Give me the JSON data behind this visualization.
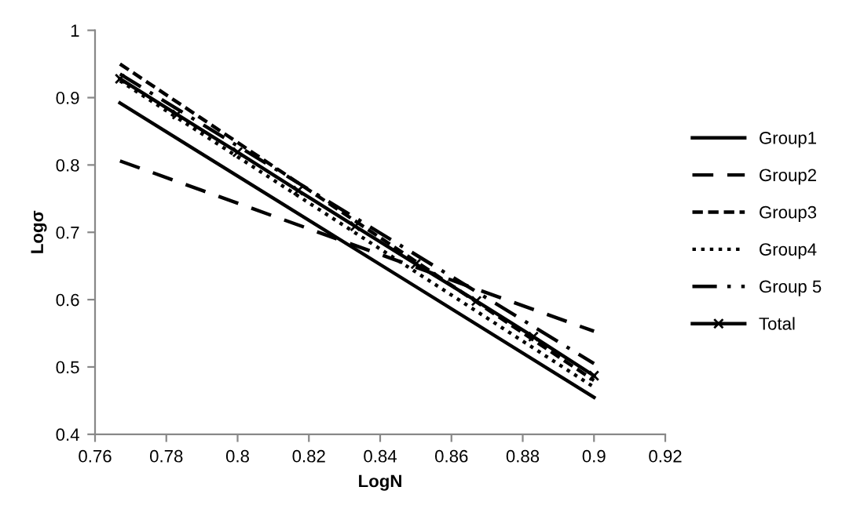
{
  "chart_data": {
    "type": "line",
    "xlabel": "LogN",
    "ylabel": "Logσ",
    "xlim": [
      0.76,
      0.92
    ],
    "xticks": [
      0.76,
      0.78,
      0.8,
      0.82,
      0.84,
      0.86,
      0.88,
      0.9,
      0.92
    ],
    "ylim": [
      0.4,
      1
    ],
    "yticks": [
      0.4,
      0.5,
      0.6,
      0.7,
      0.8,
      0.9,
      1
    ],
    "grid": false,
    "legend": "right",
    "marker": "none",
    "series": [
      {
        "name": "Group1",
        "color": "#000000",
        "line_style": "solid",
        "x": [
          0.767,
          0.9
        ],
        "values": [
          0.892,
          0.455
        ]
      },
      {
        "name": "Group2",
        "color": "#000000",
        "line_style": "longdash",
        "x": [
          0.767,
          0.9
        ],
        "values": [
          0.806,
          0.553
        ]
      },
      {
        "name": "Group3",
        "color": "#000000",
        "line_style": "dashed",
        "x": [
          0.767,
          0.9
        ],
        "values": [
          0.95,
          0.48
        ]
      },
      {
        "name": "Group4",
        "color": "#000000",
        "line_style": "dotted",
        "x": [
          0.767,
          0.9
        ],
        "values": [
          0.925,
          0.47
        ]
      },
      {
        "name": "Group 5",
        "color": "#000000",
        "line_style": "dashdot",
        "x": [
          0.767,
          0.9
        ],
        "values": [
          0.935,
          0.505
        ]
      },
      {
        "name": "Total",
        "color": "#000000",
        "line_style": "solid",
        "marker": "cross",
        "x": [
          0.767,
          0.783,
          0.8,
          0.817,
          0.833,
          0.85,
          0.867,
          0.883,
          0.9
        ],
        "values": [
          0.928,
          0.875,
          0.819,
          0.762,
          0.709,
          0.653,
          0.598,
          0.545,
          0.487
        ]
      }
    ]
  }
}
